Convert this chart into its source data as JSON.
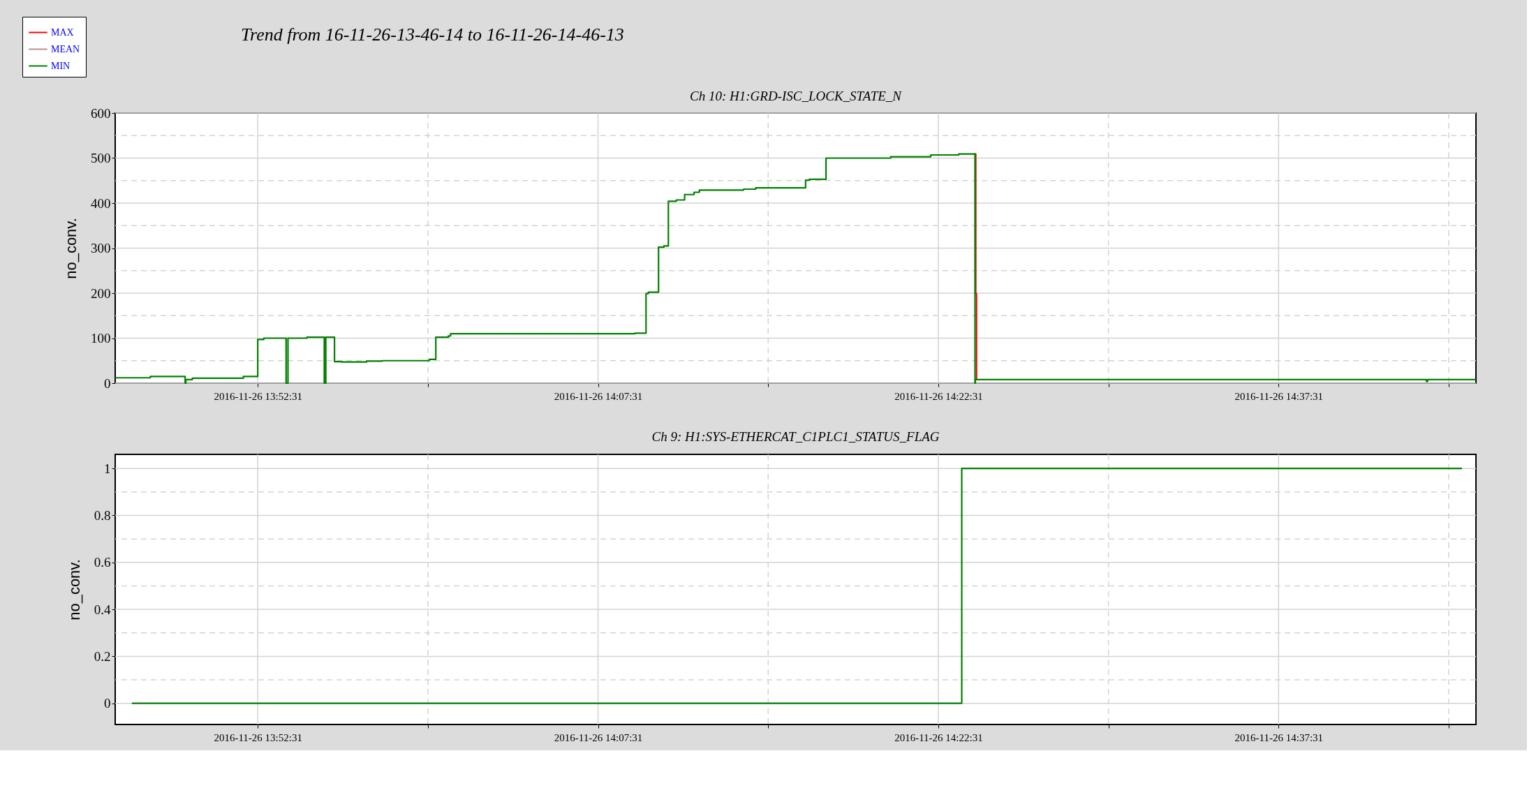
{
  "chart_data": [
    {
      "type": "step",
      "title": "Trend from 16-11-26-13-46-14 to 16-11-26-14-46-13",
      "subtitle": "Ch 10: H1:GRD-ISC_LOCK_STATE_N",
      "ylabel": "no_conv.",
      "legend": "top left",
      "grid": true,
      "xlim": [
        "2016-11-26T13:46:14",
        "2016-11-26T14:46:13"
      ],
      "xticks": [
        {
          "value": "2016-11-26T13:52:31",
          "label": "2016-11-26 13:52:31"
        },
        {
          "value": "2016-11-26T14:00:01",
          "label": null
        },
        {
          "value": "2016-11-26T14:07:31",
          "label": "2016-11-26 14:07:31"
        },
        {
          "value": "2016-11-26T14:15:01",
          "label": null
        },
        {
          "value": "2016-11-26T14:22:31",
          "label": "2016-11-26 14:22:31"
        },
        {
          "value": "2016-11-26T14:30:01",
          "label": null
        },
        {
          "value": "2016-11-26T14:37:31",
          "label": "2016-11-26 14:37:31"
        },
        {
          "value": "2016-11-26T14:45:01",
          "label": null
        }
      ],
      "ylim": [
        0,
        600
      ],
      "yticks": [
        0,
        {
          "value": 50,
          "label": null
        },
        100,
        {
          "value": 150,
          "label": null
        },
        200,
        {
          "value": 250,
          "label": null
        },
        300,
        {
          "value": 350,
          "label": null
        },
        400,
        {
          "value": 450,
          "label": null
        },
        500,
        {
          "value": 550,
          "label": null
        },
        600
      ],
      "x": [
        "2016-11-26T13:46:14",
        "2016-11-26T13:47:47",
        "2016-11-26T13:49:19",
        "2016-11-26T13:49:21",
        "2016-11-26T13:49:38",
        "2016-11-26T13:51:53",
        "2016-11-26T13:52:31",
        "2016-11-26T13:52:47",
        "2016-11-26T13:53:46",
        "2016-11-26T13:53:51",
        "2016-11-26T13:54:41",
        "2016-11-26T13:55:27",
        "2016-11-26T13:55:31",
        "2016-11-26T13:55:54",
        "2016-11-26T13:56:13",
        "2016-11-26T13:57:19",
        "2016-11-26T13:58:00",
        "2016-11-26T14:00:05",
        "2016-11-26T14:00:22",
        "2016-11-26T14:00:55",
        "2016-11-26T14:01:01",
        "2016-11-26T14:09:09",
        "2016-11-26T14:09:38",
        "2016-11-26T14:09:44",
        "2016-11-26T14:10:11",
        "2016-11-26T14:10:25",
        "2016-11-26T14:10:37",
        "2016-11-26T14:10:58",
        "2016-11-26T14:11:20",
        "2016-11-26T14:11:45",
        "2016-11-26T14:11:59",
        "2016-11-26T14:13:56",
        "2016-11-26T14:14:28",
        "2016-11-26T14:16:40",
        "2016-11-26T14:16:50",
        "2016-11-26T14:17:34",
        "2016-11-26T14:20:25",
        "2016-11-26T14:22:11",
        "2016-11-26T14:23:25",
        "2016-11-26T14:24:08",
        "2016-11-26T14:24:09",
        "2016-11-26T14:44:02",
        "2016-11-26T14:44:05",
        "2016-11-26T14:46:13"
      ],
      "series": [
        {
          "name": "MAX",
          "color": "#ff0000",
          "x": [
            "2016-11-26T14:24:06",
            "2016-11-26T14:24:10",
            "2016-11-26T14:24:12"
          ],
          "values": [
            509,
            199,
            8
          ]
        },
        {
          "name": "MEAN",
          "color": "#bc8f8f",
          "values": [
            null,
            null,
            null,
            null,
            null,
            null,
            null,
            null,
            null,
            null,
            null,
            null,
            null,
            null,
            null,
            null,
            null,
            null,
            null,
            null,
            null,
            null,
            null,
            null,
            null,
            null,
            null,
            null,
            null,
            null,
            null,
            null,
            null,
            null,
            null,
            null,
            null,
            null,
            null,
            null,
            null,
            null,
            null,
            null
          ]
        },
        {
          "name": "MIN",
          "color": "#008000",
          "values": [
            12,
            15,
            0,
            8,
            11,
            15,
            97,
            100,
            0,
            100,
            102,
            0,
            102,
            48,
            47,
            49,
            50,
            53,
            102,
            105,
            110,
            111,
            199,
            202,
            302,
            305,
            404,
            407,
            419,
            424,
            429,
            431,
            434,
            451,
            453,
            500,
            503,
            507,
            509,
            0,
            8,
            4,
            8,
            8
          ]
        }
      ]
    },
    {
      "type": "step",
      "title": "Ch 9: H1:SYS-ETHERCAT_C1PLC1_STATUS_FLAG",
      "ylabel": "no_conv.",
      "grid": true,
      "xlim": [
        "2016-11-26T13:46:14",
        "2016-11-26T14:46:13"
      ],
      "xticks": [
        {
          "value": "2016-11-26T13:52:31",
          "label": "2016-11-26 13:52:31"
        },
        {
          "value": "2016-11-26T14:00:01",
          "label": null
        },
        {
          "value": "2016-11-26T14:07:31",
          "label": "2016-11-26 14:07:31"
        },
        {
          "value": "2016-11-26T14:15:01",
          "label": null
        },
        {
          "value": "2016-11-26T14:22:31",
          "label": "2016-11-26 14:22:31"
        },
        {
          "value": "2016-11-26T14:30:01",
          "label": null
        },
        {
          "value": "2016-11-26T14:37:31",
          "label": "2016-11-26 14:37:31"
        },
        {
          "value": "2016-11-26T14:45:01",
          "label": null
        }
      ],
      "ylim": [
        -0.09,
        1.06
      ],
      "yticks": [
        0,
        {
          "value": 0.1,
          "label": null
        },
        0.2,
        {
          "value": 0.3,
          "label": null
        },
        0.4,
        {
          "value": 0.5,
          "label": null
        },
        0.6,
        {
          "value": 0.7,
          "label": null
        },
        0.8,
        {
          "value": 0.9,
          "label": null
        },
        1
      ],
      "x": [
        "2016-11-26T13:46:58",
        "2016-11-26T14:23:33",
        "2016-11-26T14:45:36"
      ],
      "series": [
        {
          "color": "#008000",
          "values": [
            0,
            1,
            1
          ]
        }
      ]
    }
  ]
}
